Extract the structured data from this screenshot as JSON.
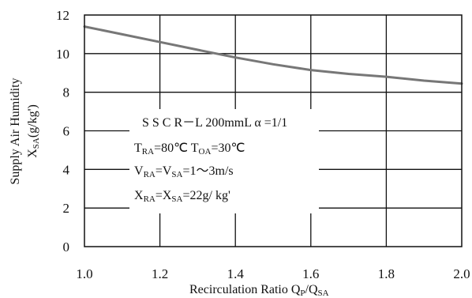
{
  "chart_data": {
    "type": "line",
    "title": "",
    "xlabel": "Recirculation Ratio Q",
    "xlabel_sub1": "P",
    "xlabel_mid": "/Q",
    "xlabel_sub2": "SA",
    "ylabel_line1": "Supply Air Humidity",
    "ylabel_line2_main": "X",
    "ylabel_line2_sub": "SA",
    "ylabel_line2_unit": "(g/kg')",
    "xlim": [
      1.0,
      2.0
    ],
    "ylim": [
      0,
      12
    ],
    "xticks": [
      "1.0",
      "1.2",
      "1.4",
      "1.6",
      "1.8",
      "2.0"
    ],
    "yticks": [
      "0",
      "2",
      "4",
      "6",
      "8",
      "10",
      "12"
    ],
    "grid": true,
    "series": [
      {
        "x": [
          1.0,
          1.1,
          1.2,
          1.3,
          1.4,
          1.5,
          1.6,
          1.7,
          1.8,
          1.9,
          2.0
        ],
        "y": [
          11.4,
          11.0,
          10.6,
          10.2,
          9.8,
          9.45,
          9.15,
          8.95,
          8.8,
          8.6,
          8.45
        ],
        "color": "#777777"
      }
    ],
    "annotations": {
      "line1": "S S C R－L  200mmL   α =1/1",
      "t_ra": "T",
      "t_ra_sub": "RA",
      "t_ra_val": "=80℃ ",
      "t_oa": "T",
      "t_oa_sub": "OA",
      "t_oa_val": "=30℃",
      "v_ra": "V",
      "v_ra_sub": "RA",
      "v_eq": "=V",
      "v_sa_sub": "SA",
      "v_val": "=1～3m/s",
      "x_ra": "X",
      "x_ra_sub": "RA",
      "x_eq": "=X",
      "x_sa_sub": "SA",
      "x_val": "=22g/ kg'"
    }
  }
}
